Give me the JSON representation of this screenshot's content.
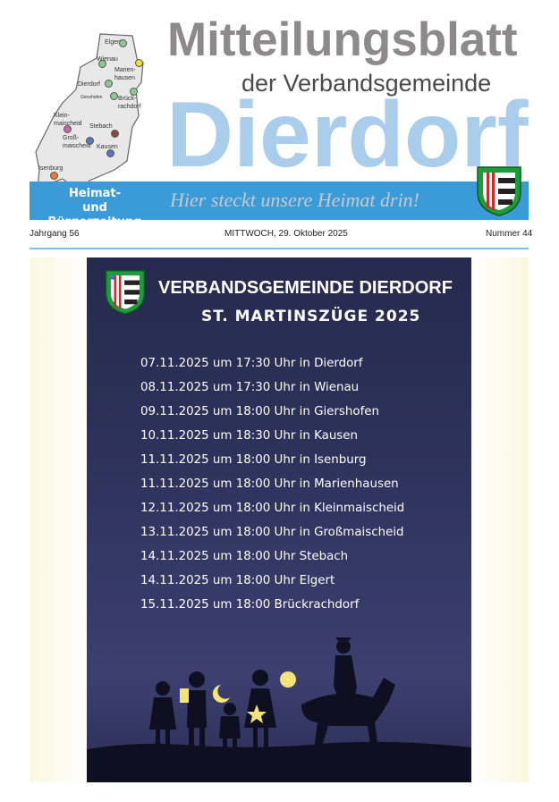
{
  "header": {
    "title": "Mitteilungsblatt",
    "subtitle": "der Verbandsgemeinde",
    "name": "Dierdorf",
    "tagline_line1": "Heimat-",
    "tagline_line2": "und Bürgerzeitung",
    "slogan": "Hier steckt unsere Heimat drin!"
  },
  "map": {
    "places": [
      {
        "label": "Elgert",
        "color": "#8fc98f"
      },
      {
        "label": "Wienau",
        "color": "#8fc98f"
      },
      {
        "label": "Marien-\nhausen",
        "color": "#f1e12a"
      },
      {
        "label": "Dierdorf",
        "color": "#8fc98f"
      },
      {
        "label": "Giershofen",
        "color": "#8fc98f"
      },
      {
        "label": "Brück-\nrachdorf",
        "color": "#8fc98f"
      },
      {
        "label": "Klein-\nmaischeid",
        "color": "#c06aa8"
      },
      {
        "label": "Stebach",
        "color": "#8a4a3a"
      },
      {
        "label": "Groß-\nmaischeid",
        "color": "#5e76b8"
      },
      {
        "label": "Kausen",
        "color": "#5e76b8"
      },
      {
        "label": "Isenburg",
        "color": "#ec7b2e"
      }
    ]
  },
  "info": {
    "volume": "Jahrgang 56",
    "date": "MITTWOCH, 29. Oktober 2025",
    "number": "Nummer 44"
  },
  "poster": {
    "title": "VERBANDSGEMEINDE DIERDORF",
    "subtitle": "ST. MARTINSZÜGE 2025",
    "dates": [
      "07.11.2025 um 17:30 Uhr in Dierdorf",
      "08.11.2025 um 17:30 Uhr in Wienau",
      "09.11.2025 um 18:00 Uhr in Giershofen",
      "10.11.2025 um 18:30 Uhr in Kausen",
      "11.11.2025 um 18:00 Uhr in Isenburg",
      "11.11.2025 um 18:00 Uhr in Marienhausen",
      "12.11.2025 um 18:00 Uhr in Kleinmaischeid",
      "13.11.2025 um 18:00 Uhr in Großmaischeid",
      "14.11.2025 um 18:00 Uhr Stebach",
      "14.11.2025 um 18:00 Uhr Elgert",
      "15.11.2025 um 18:00 Brückrachdorf"
    ]
  },
  "colors": {
    "accent": "#3a9bd8",
    "title_blue": "#a9cdeb",
    "poster_bg": "#2e335c"
  }
}
